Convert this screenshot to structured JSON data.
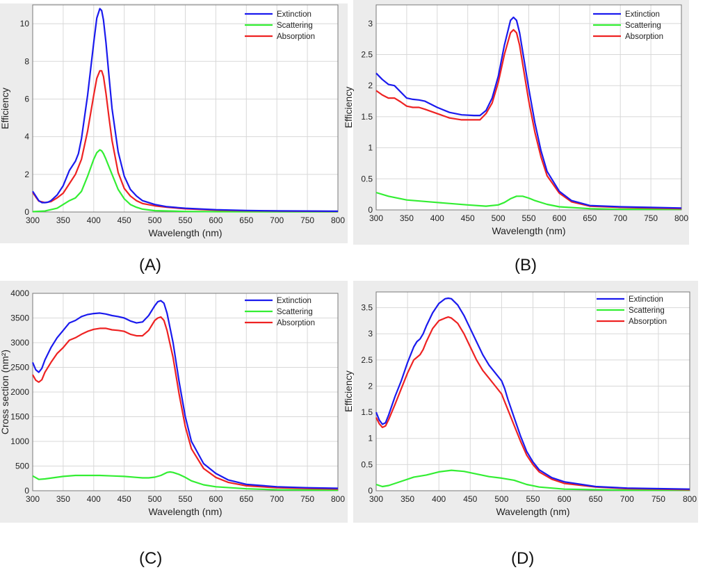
{
  "chart_data": [
    {
      "type": "line",
      "panel": "A",
      "caption": "(A)",
      "xlabel": "Wavelength (nm)",
      "ylabel": "Efficiency",
      "xlim": [
        300,
        800
      ],
      "ylim": [
        0,
        11
      ],
      "xticks": [
        300,
        350,
        400,
        450,
        500,
        550,
        600,
        650,
        700,
        750,
        800
      ],
      "yticks": [
        0,
        2,
        4,
        6,
        8,
        10
      ],
      "grid": true,
      "legend": "top-right",
      "series": [
        {
          "name": "Extinction",
          "color": "#1a1aee",
          "x": [
            300,
            305,
            310,
            315,
            320,
            325,
            330,
            340,
            350,
            360,
            370,
            375,
            380,
            390,
            400,
            405,
            410,
            413,
            416,
            420,
            425,
            430,
            440,
            450,
            460,
            470,
            480,
            500,
            520,
            550,
            600,
            650,
            700,
            750,
            800
          ],
          "y": [
            1.1,
            0.85,
            0.6,
            0.5,
            0.5,
            0.52,
            0.6,
            0.9,
            1.4,
            2.2,
            2.7,
            3.1,
            3.9,
            6.2,
            9.0,
            10.3,
            10.8,
            10.7,
            10.2,
            9.0,
            7.2,
            5.5,
            3.2,
            1.9,
            1.2,
            0.85,
            0.6,
            0.4,
            0.28,
            0.2,
            0.12,
            0.08,
            0.06,
            0.05,
            0.04
          ]
        },
        {
          "name": "Scattering",
          "color": "#33ee33",
          "x": [
            300,
            320,
            340,
            350,
            360,
            370,
            380,
            390,
            400,
            405,
            410,
            413,
            416,
            420,
            430,
            440,
            450,
            460,
            470,
            480,
            500,
            550,
            600,
            700,
            800
          ],
          "y": [
            0.02,
            0.05,
            0.2,
            0.4,
            0.6,
            0.75,
            1.1,
            1.9,
            2.8,
            3.15,
            3.3,
            3.25,
            3.1,
            2.8,
            2.0,
            1.2,
            0.7,
            0.4,
            0.25,
            0.15,
            0.07,
            0.03,
            0.02,
            0.01,
            0.01
          ]
        },
        {
          "name": "Absorption",
          "color": "#ee2222",
          "x": [
            300,
            305,
            310,
            320,
            330,
            340,
            350,
            360,
            370,
            380,
            390,
            400,
            405,
            410,
            413,
            416,
            420,
            425,
            430,
            440,
            450,
            460,
            470,
            480,
            500,
            520,
            550,
            600,
            650,
            700,
            800
          ],
          "y": [
            1.05,
            0.8,
            0.58,
            0.5,
            0.55,
            0.75,
            1.0,
            1.5,
            2.0,
            2.8,
            4.3,
            6.2,
            7.1,
            7.5,
            7.5,
            7.2,
            6.3,
            5.0,
            3.8,
            2.1,
            1.25,
            0.85,
            0.6,
            0.45,
            0.33,
            0.25,
            0.17,
            0.1,
            0.07,
            0.05,
            0.03
          ]
        }
      ]
    },
    {
      "type": "line",
      "panel": "B",
      "caption": "(B)",
      "xlabel": "Wavelength (nm)",
      "ylabel": "Efficiency",
      "xlim": [
        300,
        800
      ],
      "ylim": [
        0,
        3.3
      ],
      "xticks": [
        300,
        350,
        400,
        450,
        500,
        550,
        600,
        650,
        700,
        750,
        800
      ],
      "yticks": [
        0,
        0.5,
        1,
        1.5,
        2,
        2.5,
        3
      ],
      "grid": true,
      "legend": "top-right",
      "series": [
        {
          "name": "Extinction",
          "color": "#1a1aee",
          "x": [
            300,
            310,
            320,
            330,
            340,
            350,
            360,
            370,
            380,
            400,
            420,
            440,
            460,
            470,
            480,
            490,
            500,
            510,
            520,
            525,
            530,
            535,
            540,
            550,
            560,
            570,
            580,
            600,
            620,
            650,
            700,
            750,
            800
          ],
          "y": [
            2.2,
            2.1,
            2.02,
            2.0,
            1.9,
            1.8,
            1.78,
            1.77,
            1.75,
            1.65,
            1.57,
            1.53,
            1.52,
            1.52,
            1.6,
            1.8,
            2.15,
            2.65,
            3.05,
            3.1,
            3.05,
            2.85,
            2.55,
            1.95,
            1.4,
            0.95,
            0.62,
            0.3,
            0.15,
            0.07,
            0.05,
            0.04,
            0.03
          ]
        },
        {
          "name": "Scattering",
          "color": "#33ee33",
          "x": [
            300,
            320,
            350,
            400,
            450,
            480,
            500,
            510,
            520,
            530,
            540,
            550,
            560,
            580,
            600,
            650,
            700,
            800
          ],
          "y": [
            0.28,
            0.22,
            0.16,
            0.12,
            0.08,
            0.06,
            0.08,
            0.12,
            0.18,
            0.22,
            0.22,
            0.19,
            0.15,
            0.09,
            0.05,
            0.02,
            0.01,
            0.01
          ]
        },
        {
          "name": "Absorption",
          "color": "#ee2222",
          "x": [
            300,
            310,
            320,
            330,
            340,
            350,
            360,
            370,
            380,
            400,
            420,
            440,
            460,
            470,
            480,
            490,
            500,
            510,
            520,
            525,
            530,
            535,
            540,
            550,
            560,
            570,
            580,
            600,
            620,
            650,
            700,
            750,
            800
          ],
          "y": [
            1.92,
            1.85,
            1.8,
            1.8,
            1.74,
            1.67,
            1.65,
            1.65,
            1.62,
            1.55,
            1.48,
            1.45,
            1.45,
            1.45,
            1.55,
            1.72,
            2.05,
            2.5,
            2.85,
            2.9,
            2.85,
            2.65,
            2.35,
            1.75,
            1.25,
            0.85,
            0.55,
            0.27,
            0.13,
            0.06,
            0.04,
            0.03,
            0.02
          ]
        }
      ]
    },
    {
      "type": "line",
      "panel": "C",
      "caption": "(C)",
      "xlabel": "Wavelength (nm)",
      "ylabel": "Cross section (nm²)",
      "xlim": [
        300,
        800
      ],
      "ylim": [
        0,
        4000
      ],
      "xticks": [
        300,
        350,
        400,
        450,
        500,
        550,
        600,
        650,
        700,
        750,
        800
      ],
      "yticks": [
        0,
        500,
        1000,
        1500,
        2000,
        2500,
        3000,
        3500,
        4000
      ],
      "grid": true,
      "legend": "top-right",
      "series": [
        {
          "name": "Extinction",
          "color": "#1a1aee",
          "x": [
            300,
            305,
            310,
            315,
            320,
            330,
            340,
            350,
            360,
            370,
            380,
            390,
            400,
            410,
            420,
            430,
            440,
            450,
            460,
            470,
            480,
            490,
            500,
            505,
            510,
            515,
            520,
            530,
            540,
            550,
            560,
            580,
            600,
            620,
            650,
            700,
            750,
            800
          ],
          "y": [
            2600,
            2450,
            2400,
            2480,
            2650,
            2900,
            3100,
            3250,
            3400,
            3450,
            3530,
            3570,
            3590,
            3600,
            3580,
            3550,
            3530,
            3500,
            3440,
            3400,
            3420,
            3550,
            3750,
            3830,
            3850,
            3800,
            3600,
            3000,
            2200,
            1500,
            1000,
            550,
            350,
            220,
            130,
            80,
            60,
            50
          ]
        },
        {
          "name": "Scattering",
          "color": "#33ee33",
          "x": [
            300,
            310,
            320,
            350,
            370,
            390,
            410,
            430,
            450,
            470,
            480,
            490,
            500,
            510,
            520,
            525,
            530,
            540,
            550,
            560,
            580,
            600,
            650,
            700,
            800
          ],
          "y": [
            300,
            230,
            240,
            290,
            310,
            310,
            310,
            300,
            290,
            270,
            260,
            260,
            275,
            310,
            370,
            380,
            370,
            330,
            270,
            200,
            120,
            80,
            40,
            20,
            10
          ]
        },
        {
          "name": "Absorption",
          "color": "#ee2222",
          "x": [
            300,
            305,
            310,
            315,
            320,
            330,
            340,
            350,
            360,
            370,
            380,
            390,
            400,
            410,
            420,
            430,
            440,
            450,
            460,
            470,
            480,
            490,
            500,
            505,
            510,
            515,
            520,
            530,
            540,
            550,
            560,
            580,
            600,
            620,
            650,
            700,
            750,
            800
          ],
          "y": [
            2350,
            2240,
            2200,
            2250,
            2400,
            2600,
            2780,
            2900,
            3050,
            3100,
            3170,
            3230,
            3270,
            3290,
            3290,
            3260,
            3250,
            3230,
            3170,
            3140,
            3140,
            3250,
            3450,
            3500,
            3520,
            3450,
            3250,
            2700,
            1950,
            1300,
            850,
            450,
            270,
            170,
            100,
            60,
            45,
            35
          ]
        }
      ]
    },
    {
      "type": "line",
      "panel": "D",
      "caption": "(D)",
      "xlabel": "Wavelength (nm)",
      "ylabel": "Efficiency",
      "xlim": [
        300,
        800
      ],
      "ylim": [
        0,
        3.8
      ],
      "xticks": [
        300,
        350,
        400,
        450,
        500,
        550,
        600,
        650,
        700,
        750,
        800
      ],
      "yticks": [
        0,
        0.5,
        1,
        1.5,
        2,
        2.5,
        3,
        3.5
      ],
      "grid": true,
      "legend": "top-right",
      "series": [
        {
          "name": "Extinction",
          "color": "#1a1aee",
          "x": [
            300,
            305,
            310,
            315,
            320,
            330,
            340,
            350,
            360,
            365,
            370,
            375,
            380,
            390,
            400,
            410,
            415,
            420,
            430,
            440,
            450,
            460,
            470,
            480,
            490,
            500,
            505,
            510,
            520,
            530,
            540,
            550,
            560,
            580,
            600,
            650,
            700,
            750,
            800
          ],
          "y": [
            1.5,
            1.35,
            1.27,
            1.3,
            1.45,
            1.8,
            2.1,
            2.45,
            2.75,
            2.85,
            2.9,
            3.0,
            3.15,
            3.4,
            3.58,
            3.67,
            3.68,
            3.67,
            3.55,
            3.35,
            3.1,
            2.85,
            2.6,
            2.4,
            2.25,
            2.1,
            1.95,
            1.75,
            1.4,
            1.05,
            0.75,
            0.55,
            0.4,
            0.25,
            0.17,
            0.08,
            0.05,
            0.04,
            0.03
          ]
        },
        {
          "name": "Scattering",
          "color": "#33ee33",
          "x": [
            300,
            310,
            320,
            340,
            360,
            370,
            380,
            400,
            420,
            440,
            460,
            480,
            500,
            510,
            520,
            540,
            560,
            600,
            650,
            700,
            800
          ],
          "y": [
            0.12,
            0.08,
            0.1,
            0.18,
            0.26,
            0.28,
            0.3,
            0.36,
            0.39,
            0.37,
            0.32,
            0.27,
            0.24,
            0.22,
            0.2,
            0.12,
            0.07,
            0.03,
            0.02,
            0.01,
            0.01
          ]
        },
        {
          "name": "Absorption",
          "color": "#ee2222",
          "x": [
            300,
            305,
            310,
            315,
            320,
            330,
            340,
            350,
            360,
            365,
            370,
            375,
            380,
            390,
            400,
            410,
            415,
            420,
            430,
            440,
            450,
            460,
            470,
            480,
            490,
            500,
            505,
            510,
            520,
            530,
            540,
            550,
            560,
            580,
            600,
            650,
            700,
            750,
            800
          ],
          "y": [
            1.4,
            1.28,
            1.21,
            1.24,
            1.36,
            1.65,
            1.95,
            2.25,
            2.5,
            2.55,
            2.6,
            2.7,
            2.85,
            3.1,
            3.25,
            3.3,
            3.32,
            3.3,
            3.2,
            3.0,
            2.75,
            2.5,
            2.3,
            2.15,
            2.0,
            1.85,
            1.7,
            1.55,
            1.25,
            0.95,
            0.68,
            0.5,
            0.36,
            0.22,
            0.14,
            0.07,
            0.04,
            0.03,
            0.02
          ]
        }
      ]
    }
  ]
}
